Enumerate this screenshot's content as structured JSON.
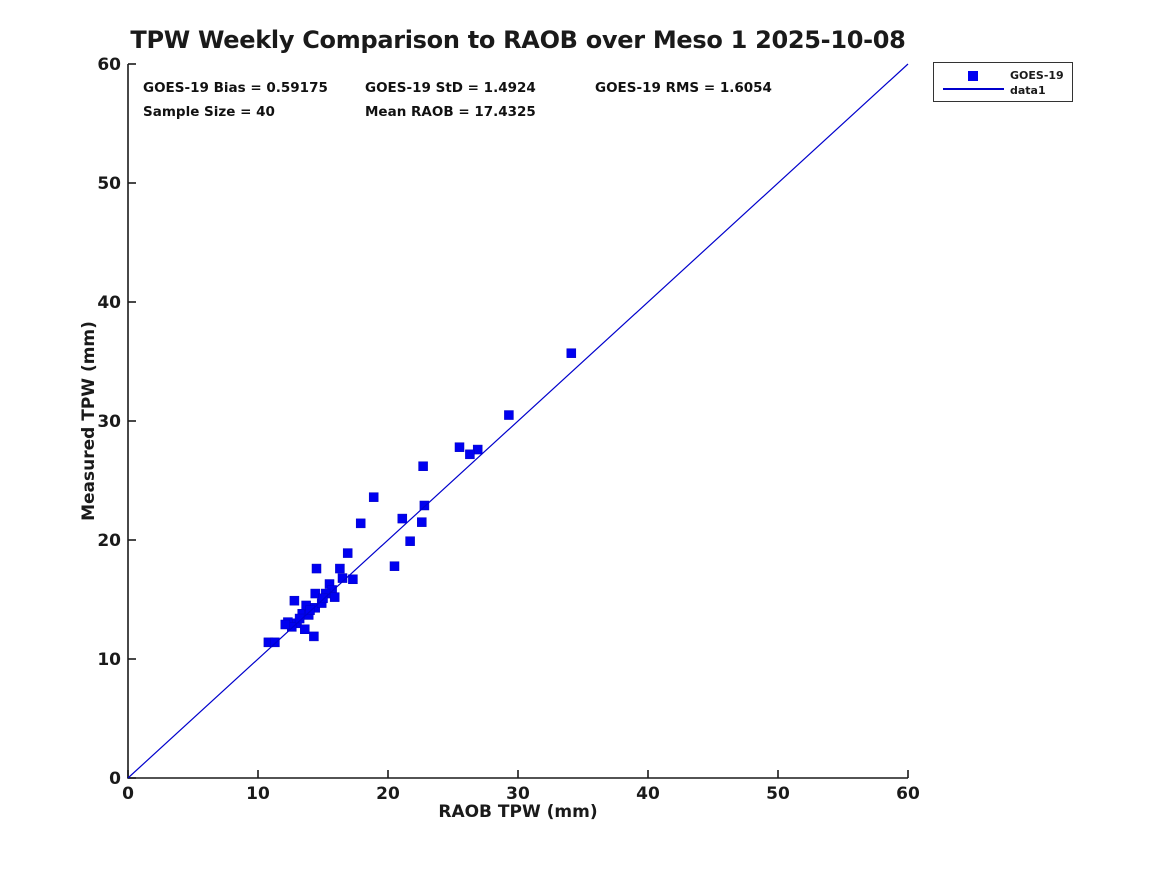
{
  "stats": {
    "bias": "GOES-19 Bias = 0.59175",
    "std": "GOES-19 StD = 1.4924",
    "rms": "GOES-19 RMS = 1.6054",
    "sample_size": "Sample Size = 40",
    "mean_raob": "Mean RAOB = 17.4325"
  },
  "chart_data": {
    "type": "scatter",
    "title": "TPW Weekly Comparison to RAOB over Meso 1 2025-10-08",
    "xlabel": "RAOB TPW (mm)",
    "ylabel": "Measured TPW (mm)",
    "xlim": [
      0,
      60
    ],
    "ylim": [
      0,
      60
    ],
    "xticks": [
      0,
      10,
      20,
      30,
      40,
      50,
      60
    ],
    "yticks": [
      0,
      10,
      20,
      30,
      40,
      50,
      60
    ],
    "grid": false,
    "box": false,
    "legend_position": "outside-top-right",
    "axis_color": "#1a1a1a",
    "background_color": "#ffffff",
    "annotations": [
      {
        "text": "GOES-19 Bias = 0.59175",
        "row": 1,
        "col": 1
      },
      {
        "text": "GOES-19 StD = 1.4924",
        "row": 1,
        "col": 2
      },
      {
        "text": "GOES-19 RMS = 1.6054",
        "row": 1,
        "col": 3
      },
      {
        "text": "Sample Size = 40",
        "row": 2,
        "col": 1
      },
      {
        "text": "Mean RAOB = 17.4325",
        "row": 2,
        "col": 2
      }
    ],
    "series": [
      {
        "name": "GOES-19",
        "type": "scatter",
        "marker": "square",
        "color": "#0000f0",
        "points": [
          [
            34.1,
            35.7
          ],
          [
            29.3,
            30.5
          ],
          [
            25.5,
            27.8
          ],
          [
            26.9,
            27.6
          ],
          [
            26.3,
            27.2
          ],
          [
            22.7,
            26.2
          ],
          [
            18.9,
            23.6
          ],
          [
            22.8,
            22.9
          ],
          [
            21.1,
            21.8
          ],
          [
            22.6,
            21.5
          ],
          [
            17.9,
            21.4
          ],
          [
            21.7,
            19.9
          ],
          [
            16.9,
            18.9
          ],
          [
            14.5,
            17.6
          ],
          [
            16.3,
            17.6
          ],
          [
            20.5,
            17.8
          ],
          [
            16.5,
            16.8
          ],
          [
            17.3,
            16.7
          ],
          [
            15.5,
            16.3
          ],
          [
            14.4,
            15.5
          ],
          [
            15.7,
            15.8
          ],
          [
            15.2,
            15.5
          ],
          [
            15.9,
            15.2
          ],
          [
            12.8,
            14.9
          ],
          [
            13.7,
            14.5
          ],
          [
            14.4,
            14.3
          ],
          [
            14.9,
            14.7
          ],
          [
            13.4,
            13.8
          ],
          [
            13.9,
            13.7
          ],
          [
            12.3,
            13.1
          ],
          [
            13.0,
            13.0
          ],
          [
            12.6,
            12.7
          ],
          [
            13.6,
            12.5
          ],
          [
            14.3,
            11.9
          ],
          [
            10.8,
            11.4
          ],
          [
            11.3,
            11.4
          ],
          [
            14.0,
            14.1
          ],
          [
            15.0,
            15.1
          ],
          [
            12.1,
            12.9
          ],
          [
            13.2,
            13.4
          ]
        ]
      },
      {
        "name": "data1",
        "type": "line",
        "color": "#0000cc",
        "points": [
          [
            0,
            0
          ],
          [
            60,
            60
          ]
        ]
      }
    ]
  }
}
